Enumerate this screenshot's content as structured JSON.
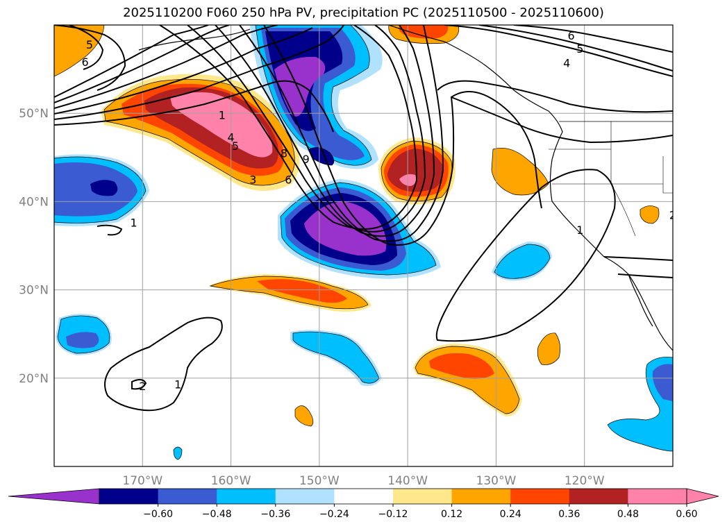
{
  "title": "2025110200 F060 250 hPa PV, precipitation PC (2025110500 - 2025110600)",
  "lat_labels": [
    {
      "name": "lat-label-50n",
      "text": "50°N",
      "lat": 50
    },
    {
      "name": "lat-label-40n",
      "text": "40°N",
      "lat": 40
    },
    {
      "name": "lat-label-30n",
      "text": "30°N",
      "lat": 30
    },
    {
      "name": "lat-label-20n",
      "text": "20°N",
      "lat": 20
    }
  ],
  "lon_labels": [
    {
      "name": "lon-label-170w",
      "text": "170°W",
      "lon": -170
    },
    {
      "name": "lon-label-160w",
      "text": "160°W",
      "lon": -160
    },
    {
      "name": "lon-label-150w",
      "text": "150°W",
      "lon": -150
    },
    {
      "name": "lon-label-140w",
      "text": "140°W",
      "lon": -140
    },
    {
      "name": "lon-label-130w",
      "text": "130°W",
      "lon": -130
    },
    {
      "name": "lon-label-120w",
      "text": "120°W",
      "lon": -120
    }
  ],
  "contour_labels": [
    {
      "text": "5",
      "lon": -176,
      "lat": 57.5
    },
    {
      "text": "6",
      "lon": -176.5,
      "lat": 55.5
    },
    {
      "text": "1",
      "lon": -161,
      "lat": 49.5
    },
    {
      "text": "4",
      "lon": -160,
      "lat": 47
    },
    {
      "text": "5",
      "lon": -159.5,
      "lat": 46
    },
    {
      "text": "8",
      "lon": -154,
      "lat": 45.2
    },
    {
      "text": "6",
      "lon": -153.5,
      "lat": 42.2
    },
    {
      "text": "9",
      "lon": -151.5,
      "lat": 44.5
    },
    {
      "text": "3",
      "lon": -157.5,
      "lat": 42.2
    },
    {
      "text": "6",
      "lon": -121.5,
      "lat": 58.5
    },
    {
      "text": "5",
      "lon": -120.5,
      "lat": 57
    },
    {
      "text": "4",
      "lon": -122,
      "lat": 55.4
    },
    {
      "text": "1",
      "lon": -171,
      "lat": 37.3
    },
    {
      "text": "1",
      "lon": -120.5,
      "lat": 36.5
    },
    {
      "text": "2",
      "lon": -170,
      "lat": 18.8
    },
    {
      "text": "1",
      "lon": -166,
      "lat": 19
    },
    {
      "text": "2",
      "lon": -110,
      "lat": 38.2
    }
  ],
  "colorbar": {
    "ticks": [
      "−0.60",
      "−0.48",
      "−0.36",
      "−0.24",
      "−0.12",
      "0.12",
      "0.24",
      "0.36",
      "0.48",
      "0.60"
    ],
    "colors": [
      "#9932cc",
      "#00008b",
      "#3a5bd1",
      "#00bfff",
      "#b0e2ff",
      "#ffffff",
      "#ffe88c",
      "#ffa500",
      "#ff4500",
      "#b22222",
      "#ff82ab",
      "#ff82ab"
    ]
  },
  "palette": {
    "purple": "#9932cc",
    "navy": "#00008b",
    "royal": "#3a5bd1",
    "sky": "#00bfff",
    "pale_blue": "#b0e2ff",
    "pale_yellow": "#ffe88c",
    "orange": "#ffa500",
    "orange_red": "#ff4500",
    "firebrick": "#b22222",
    "pink": "#ff82ab"
  }
}
